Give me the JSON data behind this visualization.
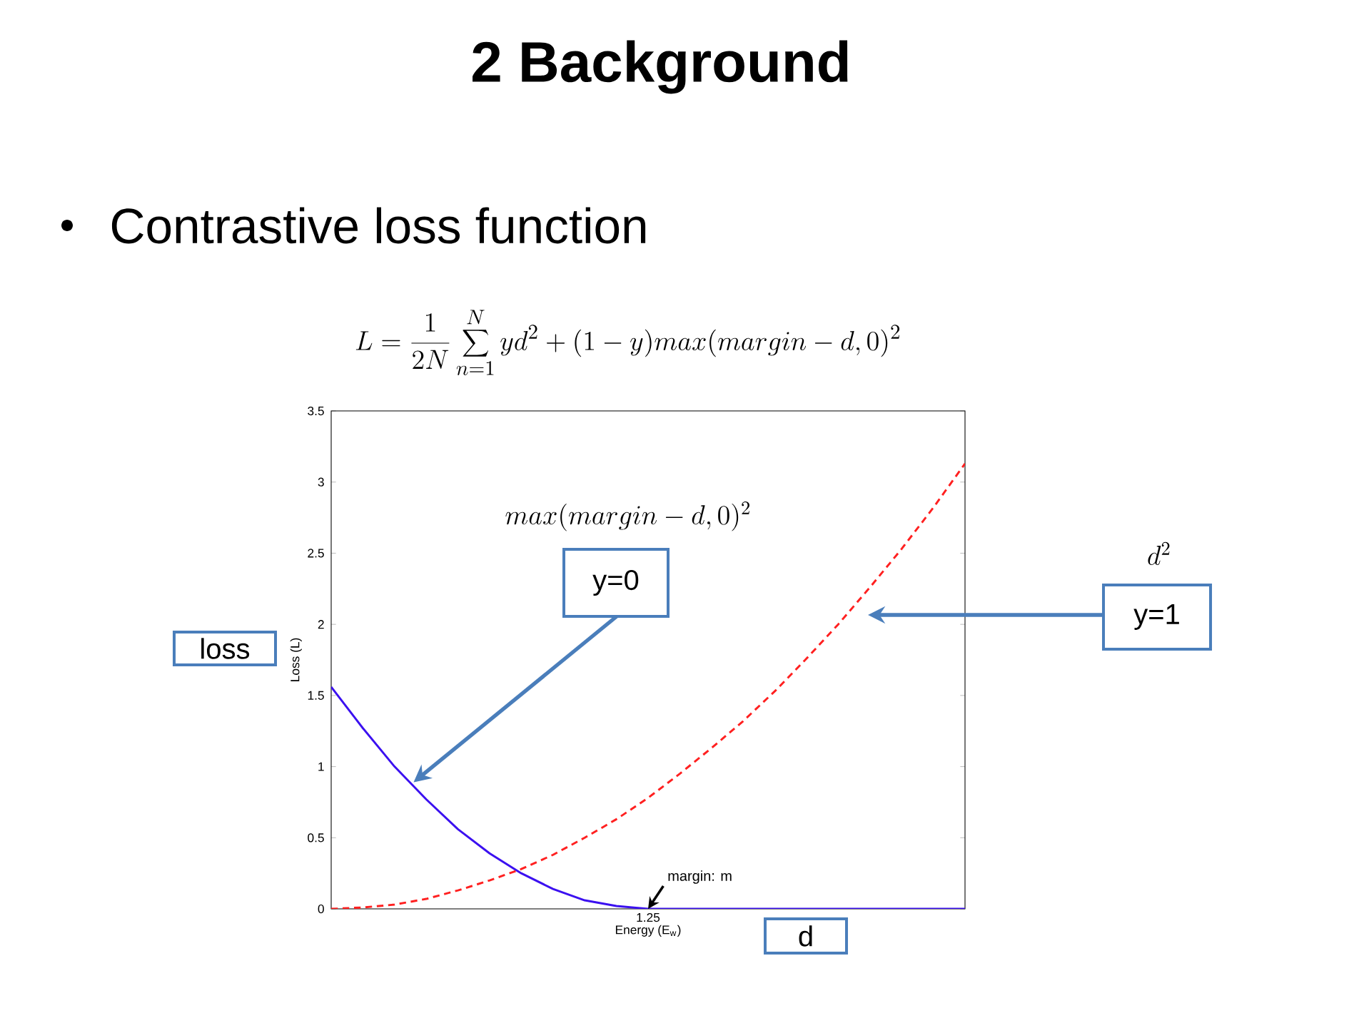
{
  "chart_data": {
    "type": "line",
    "title": "2 Background",
    "xlabel": "Energy (E$_{w}$)",
    "ylabel": "Loss (L)",
    "categories": [
      null,
      null,
      null,
      null,
      null,
      null,
      null,
      null,
      null,
      null,
      null,
      null,
      null,
      null,
      null,
      null,
      null,
      null,
      null,
      null,
      null
    ],
    "ylim": [
      0,
      3.5
    ],
    "yticks": [
      0,
      0.5,
      1,
      1.5,
      2,
      2.5,
      3,
      3.5
    ],
    "series": [
      {
        "color": "#3b10f0",
        "line_style": "solid",
        "values": [
          1.56,
          1.27,
          1.0,
          0.77,
          0.56,
          0.39,
          0.25,
          0.14,
          0.06,
          0.02,
          0,
          0,
          0,
          0,
          0,
          0,
          0,
          0,
          0,
          0,
          0
        ]
      },
      {
        "color": "#ff2020",
        "line_style": "dashed",
        "values": [
          0,
          0.01,
          0.03,
          0.07,
          0.13,
          0.2,
          0.28,
          0.38,
          0.5,
          0.63,
          0.78,
          0.95,
          1.13,
          1.32,
          1.53,
          1.76,
          2.0,
          2.26,
          2.53,
          2.82,
          3.13
        ]
      }
    ],
    "annotations": [
      "Contrastive loss function",
      "L = \\frac{1}{2N}\\sum_{n=1}^{N} yd^2 + (1-y)max(margin-d,0)^2",
      "margin: m",
      "max(margin-d,0)^2",
      "d^2",
      "y=0",
      "y=1",
      "loss",
      "d",
      "1.25"
    ]
  }
}
